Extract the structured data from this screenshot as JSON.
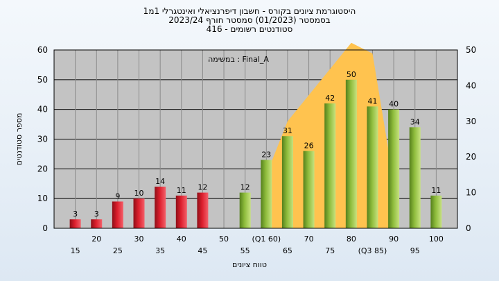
{
  "header": {
    "title_line1": "היסטוגרמת ציונים בקורס - חשבון דיפרנציאלי ואינטגרלי 1מ1",
    "title_line2": "בסמסטר  (01/2023)  סמסטר חורף  2023/24",
    "title_line3": "סטודנטים רשומים - 416"
  },
  "chart_data": {
    "type": "bar",
    "title": "היסטוגרמת ציונים בקורס - חשבון דיפרנציאלי ואינטגרלי 1מ1",
    "annotation": "במשימה : Final_A",
    "xlabel": "טווח ציונים",
    "ylabel": "מספר סטודנטים",
    "ylim_left": [
      0,
      60
    ],
    "yticks_left": [
      0,
      10,
      20,
      30,
      40,
      50,
      60
    ],
    "ylim_right": [
      0,
      50
    ],
    "yticks_right": [
      0,
      10,
      20,
      30,
      40,
      50
    ],
    "grid": true,
    "x_tick_labels": [
      {
        "x": 15,
        "label": "15",
        "row": 2
      },
      {
        "x": 20,
        "label": "20",
        "row": 1
      },
      {
        "x": 25,
        "label": "25",
        "row": 2
      },
      {
        "x": 30,
        "label": "30",
        "row": 1
      },
      {
        "x": 35,
        "label": "35",
        "row": 2
      },
      {
        "x": 40,
        "label": "40",
        "row": 1
      },
      {
        "x": 45,
        "label": "45",
        "row": 2
      },
      {
        "x": 50,
        "label": "50",
        "row": 1
      },
      {
        "x": 55,
        "label": "55",
        "row": 2
      },
      {
        "x": 60,
        "label": "(Q1 60)",
        "row": 1
      },
      {
        "x": 65,
        "label": "65",
        "row": 2
      },
      {
        "x": 70,
        "label": "70",
        "row": 1
      },
      {
        "x": 75,
        "label": "75",
        "row": 2
      },
      {
        "x": 80,
        "label": "80",
        "row": 1
      },
      {
        "x": 85,
        "label": "(Q3 85)",
        "row": 2
      },
      {
        "x": 90,
        "label": "90",
        "row": 1
      },
      {
        "x": 95,
        "label": "95",
        "row": 2
      },
      {
        "x": 100,
        "label": "100",
        "row": 1
      }
    ],
    "bars": [
      {
        "x": 15,
        "value": 3,
        "group": "fail"
      },
      {
        "x": 20,
        "value": 3,
        "group": "fail"
      },
      {
        "x": 25,
        "value": 9,
        "group": "fail"
      },
      {
        "x": 30,
        "value": 10,
        "group": "fail"
      },
      {
        "x": 35,
        "value": 14,
        "group": "fail"
      },
      {
        "x": 40,
        "value": 11,
        "group": "fail"
      },
      {
        "x": 45,
        "value": 12,
        "group": "fail"
      },
      {
        "x": 55,
        "value": 12,
        "group": "pass"
      },
      {
        "x": 60,
        "value": 23,
        "group": "pass"
      },
      {
        "x": 65,
        "value": 31,
        "group": "pass"
      },
      {
        "x": 70,
        "value": 26,
        "group": "pass"
      },
      {
        "x": 75,
        "value": 42,
        "group": "pass"
      },
      {
        "x": 80,
        "value": 50,
        "group": "pass"
      },
      {
        "x": 85,
        "value": 41,
        "group": "pass"
      },
      {
        "x": 90,
        "value": 40,
        "group": "pass"
      },
      {
        "x": 95,
        "value": 34,
        "group": "pass"
      },
      {
        "x": 100,
        "value": 11,
        "group": "pass"
      }
    ],
    "distribution_area": {
      "points": [
        {
          "x": 60,
          "y": 15
        },
        {
          "x": 65,
          "y": 30
        },
        {
          "x": 80,
          "y": 52
        },
        {
          "x": 85,
          "y": 49
        },
        {
          "x": 90,
          "y": 13
        }
      ]
    },
    "colors": {
      "fail_bar": "#dc1e2c",
      "pass_bar": "#8ebc3c",
      "area_fill": "#ffc34f",
      "plot_bg": "#c3c3c3",
      "grid": "#000000"
    }
  }
}
